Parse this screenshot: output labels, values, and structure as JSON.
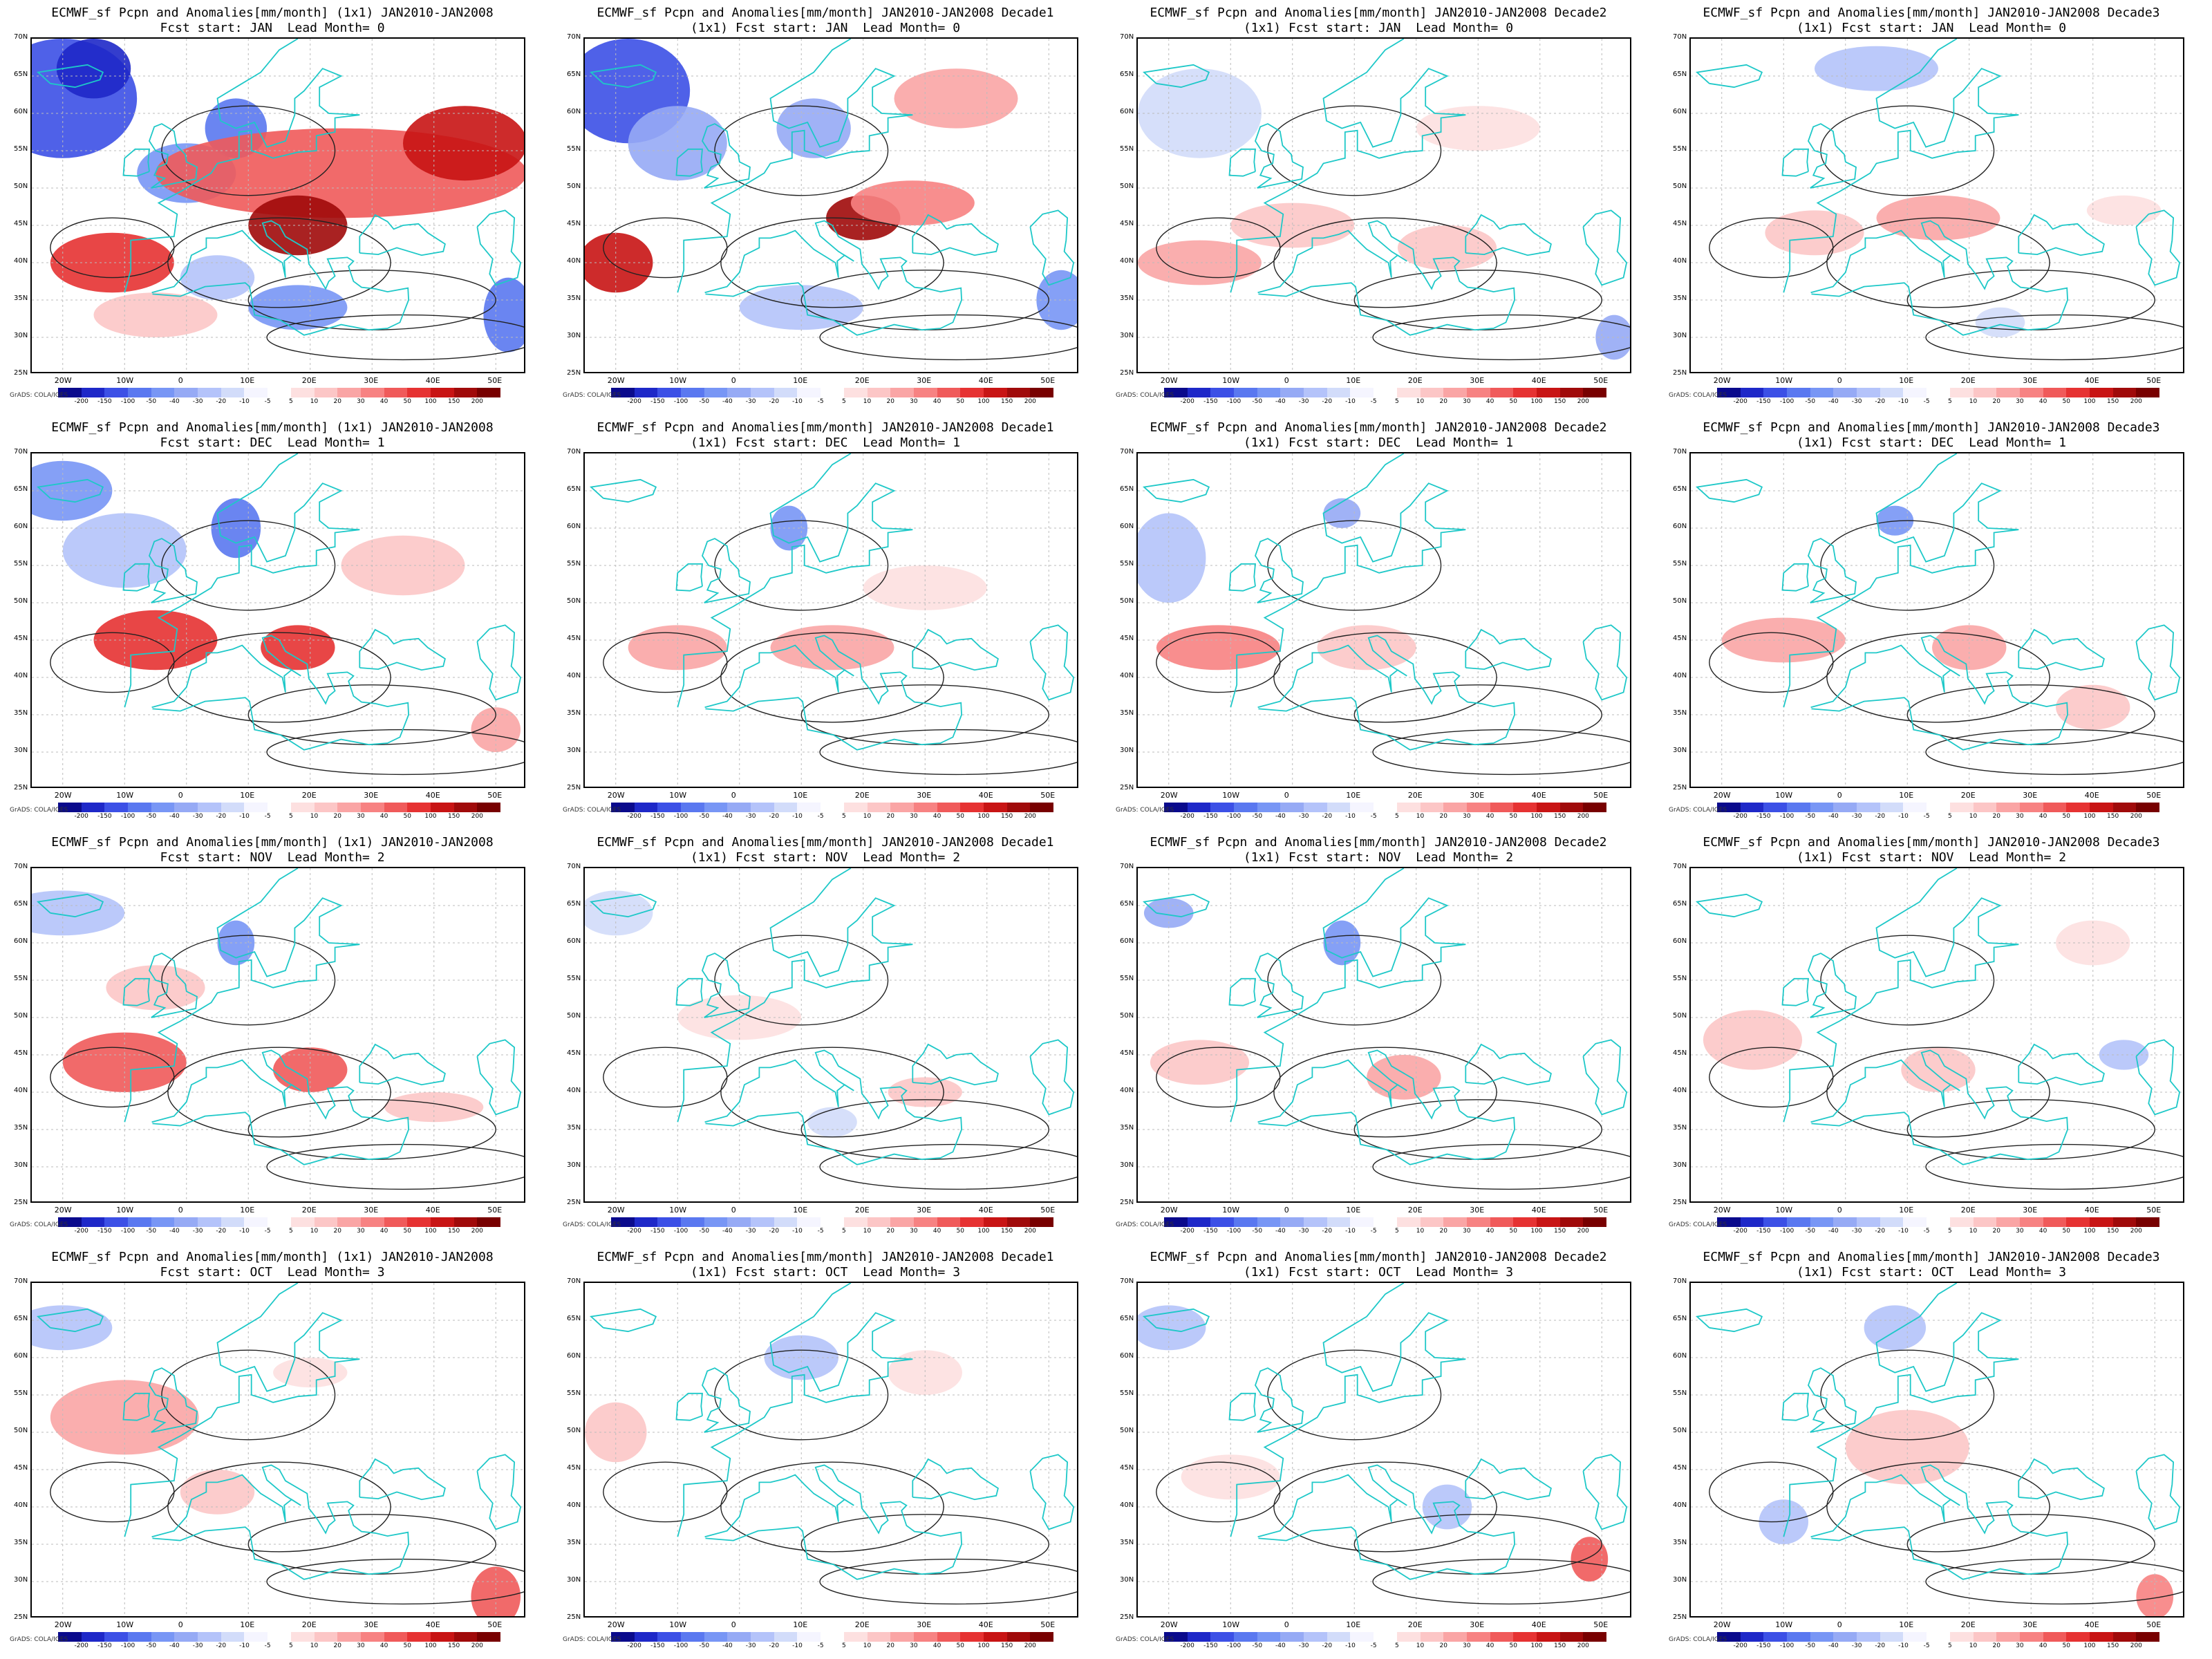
{
  "figure": {
    "panels": [
      {
        "title_line1": "ECMWF_sf Pcpn and Anomalies[mm/month] (1x1) JAN2010-JAN2008",
        "title_line2": "Fcst start: JAN  Lead Month= 0"
      },
      {
        "title_line1": "ECMWF_sf Pcpn and Anomalies[mm/month] JAN2010-JAN2008 Decade1",
        "title_line2": "(1x1) Fcst start: JAN  Lead Month= 0"
      },
      {
        "title_line1": "ECMWF_sf Pcpn and Anomalies[mm/month] JAN2010-JAN2008 Decade2",
        "title_line2": "(1x1) Fcst start: JAN  Lead Month= 0"
      },
      {
        "title_line1": "ECMWF_sf Pcpn and Anomalies[mm/month] JAN2010-JAN2008 Decade3",
        "title_line2": "(1x1) Fcst start: JAN  Lead Month= 0"
      },
      {
        "title_line1": "ECMWF_sf Pcpn and Anomalies[mm/month] (1x1) JAN2010-JAN2008",
        "title_line2": "Fcst start: DEC  Lead Month= 1"
      },
      {
        "title_line1": "ECMWF_sf Pcpn and Anomalies[mm/month] JAN2010-JAN2008 Decade1",
        "title_line2": "(1x1) Fcst start: DEC  Lead Month= 1"
      },
      {
        "title_line1": "ECMWF_sf Pcpn and Anomalies[mm/month] JAN2010-JAN2008 Decade2",
        "title_line2": "(1x1) Fcst start: DEC  Lead Month= 1"
      },
      {
        "title_line1": "ECMWF_sf Pcpn and Anomalies[mm/month] JAN2010-JAN2008 Decade3",
        "title_line2": "(1x1) Fcst start: DEC  Lead Month= 1"
      },
      {
        "title_line1": "ECMWF_sf Pcpn and Anomalies[mm/month] (1x1) JAN2010-JAN2008",
        "title_line2": "Fcst start: NOV  Lead Month= 2"
      },
      {
        "title_line1": "ECMWF_sf Pcpn and Anomalies[mm/month] JAN2010-JAN2008 Decade1",
        "title_line2": "(1x1) Fcst start: NOV  Lead Month= 2"
      },
      {
        "title_line1": "ECMWF_sf Pcpn and Anomalies[mm/month] JAN2010-JAN2008 Decade2",
        "title_line2": "(1x1) Fcst start: NOV  Lead Month= 2"
      },
      {
        "title_line1": "ECMWF_sf Pcpn and Anomalies[mm/month] JAN2010-JAN2008 Decade3",
        "title_line2": "(1x1) Fcst start: NOV  Lead Month= 2"
      },
      {
        "title_line1": "ECMWF_sf Pcpn and Anomalies[mm/month] (1x1) JAN2010-JAN2008",
        "title_line2": "Fcst start: OCT  Lead Month= 3"
      },
      {
        "title_line1": "ECMWF_sf Pcpn and Anomalies[mm/month] JAN2010-JAN2008 Decade1",
        "title_line2": "(1x1) Fcst start: OCT  Lead Month= 3"
      },
      {
        "title_line1": "ECMWF_sf Pcpn and Anomalies[mm/month] JAN2010-JAN2008 Decade2",
        "title_line2": "(1x1) Fcst start: OCT  Lead Month= 3"
      },
      {
        "title_line1": "ECMWF_sf Pcpn and Anomalies[mm/month] JAN2010-JAN2008 Decade3",
        "title_line2": "(1x1) Fcst start: OCT  Lead Month= 3"
      }
    ],
    "lat_labels": [
      "70N",
      "65N",
      "60N",
      "55N",
      "50N",
      "45N",
      "40N",
      "35N",
      "30N",
      "25N"
    ],
    "lon_labels": [
      "20W",
      "10W",
      "0",
      "10E",
      "20E",
      "30E",
      "40E",
      "50E"
    ],
    "colorbar_labels": [
      "-200",
      "-150",
      "-100",
      "-50",
      "-40",
      "-30",
      "-20",
      "-10",
      "-5",
      "5",
      "10",
      "20",
      "30",
      "40",
      "50",
      "100",
      "150",
      "200"
    ],
    "colorbar_colors": [
      "#0a0a8c",
      "#1e28c8",
      "#3c50e6",
      "#5a78f0",
      "#7896f5",
      "#96aaf5",
      "#b4c3fa",
      "#d2dcfa",
      "#f5f5ff",
      "#ffffff",
      "#fde0e0",
      "#fcc6c6",
      "#faa5a5",
      "#f78282",
      "#f05a5a",
      "#e63232",
      "#c81414",
      "#a00a0a",
      "#780000"
    ],
    "credit_text": "GrADS: COLA/IGES",
    "colors": {
      "coastline": "#1ec8c8",
      "contour": "#222222",
      "grid": "#bbbbbb"
    }
  }
}
